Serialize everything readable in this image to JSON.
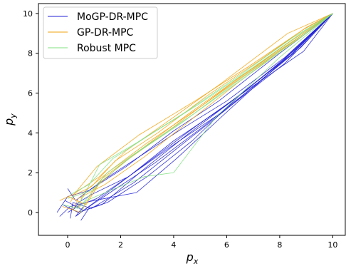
{
  "chart_data": {
    "type": "line",
    "title": "",
    "xlabel": "p_x",
    "ylabel": "p_y",
    "xlim": [
      -1.1,
      10.5
    ],
    "ylim": [
      -1.15,
      10.5
    ],
    "xticks": [
      0,
      2,
      4,
      6,
      8,
      10
    ],
    "yticks": [
      0,
      2,
      4,
      6,
      8,
      10
    ],
    "grid": false,
    "legend_position": "top-left",
    "colors": {
      "MoGP-DR-MPC": "#1f1fd6",
      "GP-DR-MPC": "#f2a30f",
      "Robust MPC": "#7fe07f"
    },
    "series": [
      {
        "name": "MoGP-DR-MPC",
        "color": "#1f1fd6",
        "trajectories": [
          [
            [
              0.2,
              0.1
            ],
            [
              0.4,
              0.5
            ],
            [
              0.9,
              0.9
            ],
            [
              2.3,
              1.8
            ],
            [
              4.0,
              3.6
            ],
            [
              5.9,
              5.3
            ],
            [
              7.9,
              7.4
            ],
            [
              10,
              10
            ]
          ],
          [
            [
              -0.3,
              -0.2
            ],
            [
              0.1,
              0.3
            ],
            [
              1.0,
              0.6
            ],
            [
              2.6,
              1.0
            ],
            [
              4.1,
              2.7
            ],
            [
              5.8,
              4.8
            ],
            [
              8.1,
              7.6
            ],
            [
              10,
              10
            ]
          ],
          [
            [
              0.0,
              1.2
            ],
            [
              0.3,
              0.6
            ],
            [
              1.2,
              1.5
            ],
            [
              2.7,
              2.8
            ],
            [
              4.3,
              4.2
            ],
            [
              6.0,
              5.6
            ],
            [
              8.2,
              7.8
            ],
            [
              10,
              10
            ]
          ],
          [
            [
              0.5,
              -0.4
            ],
            [
              0.8,
              0.2
            ],
            [
              1.5,
              0.5
            ],
            [
              3.0,
              1.8
            ],
            [
              4.7,
              3.6
            ],
            [
              6.5,
              5.9
            ],
            [
              8.9,
              8.1
            ],
            [
              10,
              10
            ]
          ],
          [
            [
              -0.2,
              0.4
            ],
            [
              0.4,
              0.0
            ],
            [
              1.3,
              0.4
            ],
            [
              2.9,
              2.2
            ],
            [
              4.6,
              4.0
            ],
            [
              6.3,
              5.7
            ],
            [
              8.4,
              7.9
            ],
            [
              10,
              10
            ]
          ],
          [
            [
              0.1,
              -0.3
            ],
            [
              0.2,
              0.5
            ],
            [
              0.9,
              0.2
            ],
            [
              2.5,
              1.5
            ],
            [
              4.2,
              3.3
            ],
            [
              6.0,
              5.2
            ],
            [
              8.5,
              8.0
            ],
            [
              10,
              10
            ]
          ],
          [
            [
              -0.4,
              0.0
            ],
            [
              0.0,
              0.8
            ],
            [
              0.8,
              1.1
            ],
            [
              2.2,
              2.3
            ],
            [
              4.0,
              4.1
            ],
            [
              5.7,
              5.6
            ],
            [
              8.0,
              8.0
            ],
            [
              10,
              10
            ]
          ],
          [
            [
              0.6,
              0.3
            ],
            [
              0.3,
              -0.2
            ],
            [
              1.4,
              0.9
            ],
            [
              3.1,
              2.6
            ],
            [
              4.8,
              4.3
            ],
            [
              6.6,
              6.0
            ],
            [
              8.6,
              8.2
            ],
            [
              10,
              10
            ]
          ],
          [
            [
              0.0,
              0.0
            ],
            [
              0.5,
              0.4
            ],
            [
              1.1,
              0.7
            ],
            [
              2.4,
              1.9
            ],
            [
              4.1,
              3.5
            ],
            [
              5.9,
              5.1
            ],
            [
              8.2,
              7.5
            ],
            [
              10,
              10
            ]
          ],
          [
            [
              -0.1,
              0.6
            ],
            [
              0.6,
              0.1
            ],
            [
              1.6,
              1.0
            ],
            [
              3.3,
              2.5
            ],
            [
              5.0,
              4.2
            ],
            [
              6.8,
              6.1
            ],
            [
              8.8,
              8.3
            ],
            [
              10,
              10
            ]
          ]
        ]
      },
      {
        "name": "GP-DR-MPC",
        "color": "#f2a30f",
        "trajectories": [
          [
            [
              0.1,
              0.5
            ],
            [
              0.3,
              1.0
            ],
            [
              1.1,
              2.3
            ],
            [
              2.7,
              3.9
            ],
            [
              4.8,
              5.6
            ],
            [
              6.9,
              7.4
            ],
            [
              8.9,
              9.2
            ],
            [
              10,
              10
            ]
          ],
          [
            [
              -0.3,
              0.6
            ],
            [
              0.2,
              0.9
            ],
            [
              1.2,
              1.8
            ],
            [
              2.2,
              3.1
            ],
            [
              3.8,
              4.6
            ],
            [
              5.7,
              6.4
            ],
            [
              8.3,
              9.0
            ],
            [
              10,
              10
            ]
          ],
          [
            [
              0.4,
              0.2
            ],
            [
              0.6,
              1.0
            ],
            [
              1.6,
              2.1
            ],
            [
              3.0,
              3.5
            ],
            [
              5.0,
              5.3
            ],
            [
              7.1,
              7.3
            ],
            [
              8.9,
              8.9
            ],
            [
              10,
              10
            ]
          ],
          [
            [
              0.0,
              0.8
            ],
            [
              0.7,
              0.4
            ],
            [
              1.3,
              1.7
            ],
            [
              2.6,
              3.0
            ],
            [
              4.5,
              4.9
            ],
            [
              6.5,
              6.8
            ],
            [
              8.6,
              8.7
            ],
            [
              10,
              10
            ]
          ],
          [
            [
              -0.2,
              0.3
            ],
            [
              0.5,
              0.0
            ],
            [
              1.0,
              1.2
            ],
            [
              2.1,
              2.5
            ],
            [
              4.0,
              4.3
            ],
            [
              6.2,
              6.5
            ],
            [
              8.4,
              8.6
            ],
            [
              10,
              10
            ]
          ],
          [
            [
              0.3,
              0.9
            ],
            [
              0.9,
              1.3
            ],
            [
              1.8,
              2.6
            ],
            [
              3.4,
              4.0
            ],
            [
              5.3,
              5.9
            ],
            [
              7.2,
              7.6
            ],
            [
              9.0,
              9.3
            ],
            [
              10,
              10
            ]
          ],
          [
            [
              0.2,
              0.1
            ],
            [
              0.4,
              0.7
            ],
            [
              1.4,
              1.4
            ],
            [
              2.9,
              2.8
            ],
            [
              4.6,
              4.6
            ],
            [
              6.4,
              6.5
            ],
            [
              8.3,
              8.4
            ],
            [
              10,
              10
            ]
          ]
        ]
      },
      {
        "name": "Robust MPC",
        "color": "#7fe07f",
        "trajectories": [
          [
            [
              0.3,
              0.2
            ],
            [
              0.6,
              0.8
            ],
            [
              1.2,
              2.4
            ],
            [
              2.6,
              3.5
            ],
            [
              4.4,
              5.0
            ],
            [
              6.5,
              6.9
            ],
            [
              8.5,
              8.8
            ],
            [
              10,
              10
            ]
          ],
          [
            [
              0.0,
              0.7
            ],
            [
              0.9,
              1.1
            ],
            [
              1.5,
              2.0
            ],
            [
              2.9,
              3.3
            ],
            [
              4.7,
              4.9
            ],
            [
              6.7,
              6.8
            ],
            [
              8.7,
              8.7
            ],
            [
              10,
              10
            ]
          ],
          [
            [
              -0.2,
              0.4
            ],
            [
              0.4,
              0.2
            ],
            [
              1.3,
              1.6
            ],
            [
              2.5,
              2.9
            ],
            [
              4.3,
              4.5
            ],
            [
              6.2,
              6.4
            ],
            [
              8.4,
              8.5
            ],
            [
              10,
              10
            ]
          ],
          [
            [
              0.5,
              0.0
            ],
            [
              0.7,
              0.6
            ],
            [
              1.6,
              1.1
            ],
            [
              2.9,
              1.8
            ],
            [
              4.0,
              2.0
            ],
            [
              5.6,
              4.8
            ],
            [
              8.0,
              7.8
            ],
            [
              10,
              10
            ]
          ],
          [
            [
              0.1,
              0.9
            ],
            [
              0.8,
              1.4
            ],
            [
              1.7,
              2.7
            ],
            [
              3.1,
              3.9
            ],
            [
              4.9,
              5.4
            ],
            [
              6.9,
              7.2
            ],
            [
              8.8,
              9.0
            ],
            [
              10,
              10
            ]
          ]
        ]
      }
    ]
  }
}
